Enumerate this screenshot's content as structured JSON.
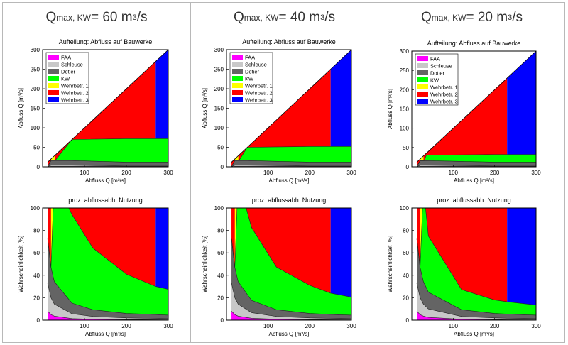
{
  "headers": [
    {
      "q": "Q",
      "sub": "max, KW",
      "mid": " = 60 m",
      "sup": "3",
      "tail": "/s"
    },
    {
      "q": "Q",
      "sub": "max, KW",
      "mid": " = 40 m",
      "sup": "3",
      "tail": "/s"
    },
    {
      "q": "Q",
      "sub": "max, KW",
      "mid": " = 20 m",
      "sup": "3",
      "tail": "/s"
    }
  ],
  "colors": {
    "FAA": "#ff00ff",
    "Schleuse": "#c8c8c8",
    "Dotier": "#646464",
    "KW": "#00ff00",
    "Wehrbetr. 1": "#ffff00",
    "Wehrbetr. 2": "#ff0000",
    "Wehrbetr. 3": "#0000ff"
  },
  "legend": [
    "FAA",
    "Schleuse",
    "Dotier",
    "KW",
    "Wehrbetr. 1",
    "Wehrbetr. 2",
    "Wehrbetr. 3"
  ],
  "chart_data": [
    {
      "type": "area",
      "title": "Aufteilung: Abfluss auf Bauwerke",
      "xlabel": "Abfluss Q [m³/s]",
      "ylabel": "Abfluss Q [m³/s]",
      "xlim": [
        0,
        300
      ],
      "ylim": [
        0,
        300
      ],
      "xticks": [
        100,
        200,
        300
      ],
      "yticks": [
        0,
        50,
        100,
        150,
        200,
        250,
        300
      ],
      "qmin": 12,
      "qmax_kw": 60,
      "wb3_start": 270,
      "x": [
        12,
        20,
        28,
        30,
        70,
        200,
        270,
        300
      ],
      "series": [
        {
          "name": "FAA",
          "values": [
            0,
            1,
            1,
            1,
            1,
            1,
            1,
            1
          ]
        },
        {
          "name": "Schleuse",
          "values": [
            0,
            3,
            3,
            3,
            3,
            1,
            1,
            1
          ]
        },
        {
          "name": "Dotier",
          "values": [
            0,
            12,
            12,
            12,
            12,
            10,
            10,
            10
          ]
        },
        {
          "name": "KW",
          "values": [
            0,
            0,
            0,
            0,
            54,
            60,
            60,
            60
          ]
        }
      ]
    },
    {
      "type": "area",
      "title": "proz. abflussabh. Nutzung",
      "xlabel": "Abfluss Q [m³/s]",
      "ylabel": "Wahrscheinlichkeit [%]",
      "xlim": [
        0,
        300
      ],
      "ylim": [
        0,
        100
      ],
      "xticks": [
        100,
        200,
        300
      ],
      "yticks": [
        0,
        20,
        40,
        60,
        80,
        100
      ],
      "qmax_kw": 60,
      "wb3_start": 270,
      "x": [
        12,
        20,
        28,
        70,
        120,
        200,
        270,
        300
      ],
      "series": [
        {
          "name": "FAA",
          "values": [
            8,
            5,
            3.6,
            1.4,
            0.8,
            0.5,
            0.4,
            0.3
          ]
        },
        {
          "name": "Schleuse",
          "values": [
            25,
            15,
            10.7,
            4.3,
            2.5,
            1.5,
            1.1,
            1
          ]
        },
        {
          "name": "Dotier",
          "values": [
            40,
            27,
            20,
            9.5,
            6,
            4,
            3.5,
            3.2
          ]
        },
        {
          "name": "KW",
          "values": [
            0,
            0,
            92,
            79,
            55,
            35,
            25,
            23
          ]
        }
      ]
    },
    {
      "type": "area",
      "title": "Aufteilung: Abfluss auf Bauwerke",
      "xlabel": "Abfluss Q [m³/s]",
      "ylabel": "Abfluss Q [m³/s]",
      "xlim": [
        0,
        300
      ],
      "ylim": [
        0,
        300
      ],
      "xticks": [
        100,
        200,
        300
      ],
      "yticks": [
        0,
        50,
        100,
        150,
        200,
        250,
        300
      ],
      "qmin": 12,
      "qmax_kw": 40,
      "wb3_start": 250,
      "x": [
        12,
        20,
        28,
        30,
        50,
        200,
        250,
        300
      ],
      "series": [
        {
          "name": "FAA",
          "values": [
            0,
            1,
            1,
            1,
            1,
            1,
            1,
            1
          ]
        },
        {
          "name": "Schleuse",
          "values": [
            0,
            3,
            3,
            3,
            3,
            1,
            1,
            1
          ]
        },
        {
          "name": "Dotier",
          "values": [
            0,
            12,
            12,
            12,
            12,
            10,
            10,
            10
          ]
        },
        {
          "name": "KW",
          "values": [
            0,
            0,
            0,
            0,
            34,
            40,
            40,
            40
          ]
        }
      ]
    },
    {
      "type": "area",
      "title": "proz. abflussabh. Nutzung",
      "xlabel": "Abfluss Q [m³/s]",
      "ylabel": "Wahrscheinlichkeit [%]",
      "xlim": [
        0,
        300
      ],
      "ylim": [
        0,
        100
      ],
      "xticks": [
        100,
        200,
        300
      ],
      "yticks": [
        0,
        20,
        40,
        60,
        80,
        100
      ],
      "qmax_kw": 40,
      "wb3_start": 250,
      "x": [
        12,
        20,
        28,
        60,
        120,
        200,
        250,
        300
      ],
      "series": [
        {
          "name": "FAA",
          "values": [
            8,
            5,
            3.6,
            1.7,
            0.8,
            0.5,
            0.4,
            0.3
          ]
        },
        {
          "name": "Schleuse",
          "values": [
            25,
            15,
            10.7,
            5,
            2.5,
            1.5,
            1.2,
            1
          ]
        },
        {
          "name": "Dotier",
          "values": [
            40,
            27,
            20,
            11,
            6,
            4,
            3.5,
            3.2
          ]
        },
        {
          "name": "KW",
          "values": [
            0,
            0,
            92,
            65,
            38,
            25,
            19,
            16
          ]
        }
      ]
    },
    {
      "type": "area",
      "title": "Aufteilung: Abfluss auf Bauwerke",
      "xlabel": "Abfluss Q [m³/s]",
      "ylabel": "Abfluss Q [m³/s]",
      "xlim": [
        0,
        300
      ],
      "ylim": [
        0,
        300
      ],
      "xticks": [
        100,
        200,
        300
      ],
      "yticks": [
        0,
        50,
        100,
        150,
        200,
        250,
        300
      ],
      "qmin": 12,
      "qmax_kw": 20,
      "wb3_start": 230,
      "x": [
        12,
        20,
        28,
        30,
        35,
        200,
        230,
        300
      ],
      "series": [
        {
          "name": "FAA",
          "values": [
            0,
            1,
            1,
            1,
            1,
            1,
            1,
            1
          ]
        },
        {
          "name": "Schleuse",
          "values": [
            0,
            3,
            3,
            3,
            3,
            1,
            1,
            1
          ]
        },
        {
          "name": "Dotier",
          "values": [
            0,
            12,
            12,
            12,
            12,
            10,
            10,
            10
          ]
        },
        {
          "name": "KW",
          "values": [
            0,
            0,
            0,
            0,
            14,
            20,
            20,
            20
          ]
        }
      ]
    },
    {
      "type": "area",
      "title": "proz. abflussabh. Nutzung",
      "xlabel": "Abfluss Q [m³/s]",
      "ylabel": "Wahrscheinlichkeit [%]",
      "xlim": [
        0,
        300
      ],
      "ylim": [
        0,
        100
      ],
      "xticks": [
        100,
        200,
        300
      ],
      "yticks": [
        0,
        20,
        40,
        60,
        80,
        100
      ],
      "qmax_kw": 20,
      "wb3_start": 230,
      "x": [
        12,
        20,
        28,
        40,
        120,
        200,
        230,
        300
      ],
      "series": [
        {
          "name": "FAA",
          "values": [
            8,
            5,
            3.6,
            2.5,
            0.8,
            0.5,
            0.4,
            0.3
          ]
        },
        {
          "name": "Schleuse",
          "values": [
            25,
            15,
            10.7,
            7.5,
            2.5,
            1.5,
            1.3,
            1
          ]
        },
        {
          "name": "Dotier",
          "values": [
            40,
            27,
            20,
            15,
            6,
            4,
            3.7,
            3.2
          ]
        },
        {
          "name": "KW",
          "values": [
            0,
            0,
            85,
            50,
            18,
            12,
            11,
            9
          ]
        }
      ]
    }
  ]
}
